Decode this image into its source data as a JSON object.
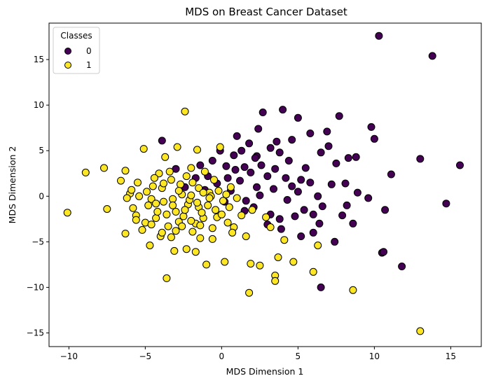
{
  "chart_data": {
    "type": "scatter",
    "title": "MDS on Breast Cancer Dataset",
    "xlabel": "MDS Dimension 1",
    "ylabel": "MDS Dimension 2",
    "xlim": [
      -11.3,
      17.0
    ],
    "ylim": [
      -16.5,
      19.0
    ],
    "xticks": [
      -10,
      -5,
      0,
      5,
      10,
      15
    ],
    "yticks": [
      -15,
      -10,
      -5,
      0,
      5,
      10,
      15
    ],
    "xtick_labels": [
      "−10",
      "−5",
      "0",
      "5",
      "10",
      "15"
    ],
    "ytick_labels": [
      "−15",
      "−10",
      "−5",
      "0",
      "5",
      "10",
      "15"
    ],
    "grid": false,
    "legend": {
      "title": "Classes",
      "placement": "top-left",
      "entries": [
        {
          "label": "0",
          "color": "#440154"
        },
        {
          "label": "1",
          "color": "#fde725"
        }
      ]
    },
    "series": [
      {
        "name": "0",
        "color": "#440154",
        "points": [
          [
            10.3,
            17.6
          ],
          [
            13.8,
            15.4
          ],
          [
            15.6,
            3.4
          ],
          [
            13.0,
            4.1
          ],
          [
            14.7,
            -0.8
          ],
          [
            11.8,
            -7.7
          ],
          [
            10.5,
            -6.2
          ],
          [
            10.6,
            -6.1
          ],
          [
            11.1,
            2.4
          ],
          [
            10.7,
            -1.5
          ],
          [
            10.0,
            6.3
          ],
          [
            9.8,
            7.6
          ],
          [
            7.7,
            8.8
          ],
          [
            8.8,
            4.3
          ],
          [
            8.3,
            4.2
          ],
          [
            8.6,
            -3.0
          ],
          [
            8.9,
            0.4
          ],
          [
            8.2,
            -1.0
          ],
          [
            7.4,
            -5.0
          ],
          [
            7.5,
            3.6
          ],
          [
            7.0,
            5.5
          ],
          [
            7.2,
            1.3
          ],
          [
            6.9,
            7.1
          ],
          [
            6.5,
            4.8
          ],
          [
            6.4,
            -3.0
          ],
          [
            6.5,
            -10.0
          ],
          [
            6.0,
            -2.0
          ],
          [
            5.8,
            1.5
          ],
          [
            5.5,
            3.1
          ],
          [
            5.2,
            -4.4
          ],
          [
            5.0,
            8.6
          ],
          [
            5.0,
            0.5
          ],
          [
            5.2,
            1.8
          ],
          [
            4.8,
            -2.2
          ],
          [
            4.4,
            3.9
          ],
          [
            4.2,
            2.0
          ],
          [
            4.0,
            9.5
          ],
          [
            3.9,
            -3.6
          ],
          [
            3.8,
            -2.5
          ],
          [
            3.6,
            6.0
          ],
          [
            3.5,
            3.0
          ],
          [
            3.4,
            0.8
          ],
          [
            3.2,
            5.3
          ],
          [
            3.2,
            -2.0
          ],
          [
            3.0,
            2.2
          ],
          [
            2.7,
            9.2
          ],
          [
            2.6,
            3.4
          ],
          [
            2.5,
            0.1
          ],
          [
            2.4,
            7.4
          ],
          [
            2.3,
            4.4
          ],
          [
            2.3,
            1.0
          ],
          [
            2.1,
            -1.2
          ],
          [
            1.9,
            2.6
          ],
          [
            1.8,
            5.8
          ],
          [
            1.6,
            -0.5
          ],
          [
            1.5,
            3.2
          ],
          [
            1.3,
            5.0
          ],
          [
            1.2,
            1.7
          ],
          [
            1.0,
            6.6
          ],
          [
            0.9,
            2.9
          ],
          [
            0.8,
            4.5
          ],
          [
            0.6,
            0.6
          ],
          [
            0.4,
            2.0
          ],
          [
            0.3,
            3.3
          ],
          [
            0.2,
            -0.6
          ],
          [
            -0.1,
            5.0
          ],
          [
            -0.3,
            1.4
          ],
          [
            -0.6,
            3.9
          ],
          [
            -0.9,
            2.2
          ],
          [
            -1.1,
            0.7
          ],
          [
            -1.4,
            3.4
          ],
          [
            -1.7,
            2.0
          ],
          [
            -2.4,
            1.0
          ],
          [
            -3.9,
            6.1
          ],
          [
            -3.0,
            3.0
          ],
          [
            3.8,
            4.8
          ],
          [
            4.6,
            6.2
          ],
          [
            5.8,
            6.9
          ],
          [
            6.6,
            -1.1
          ],
          [
            7.9,
            -2.1
          ],
          [
            9.6,
            -0.2
          ],
          [
            8.1,
            1.4
          ],
          [
            6.3,
            0.0
          ],
          [
            5.4,
            -1.5
          ],
          [
            4.3,
            -0.4
          ],
          [
            3.0,
            -3.1
          ],
          [
            2.2,
            4.2
          ],
          [
            1.5,
            -1.6
          ],
          [
            4.6,
            1.1
          ],
          [
            6.0,
            -4.0
          ]
        ]
      },
      {
        "name": "1",
        "color": "#fde725",
        "points": [
          [
            -10.1,
            -1.8
          ],
          [
            -8.9,
            2.6
          ],
          [
            -7.7,
            3.1
          ],
          [
            -7.5,
            -1.4
          ],
          [
            -6.6,
            1.7
          ],
          [
            -6.3,
            2.8
          ],
          [
            -6.3,
            -4.1
          ],
          [
            -6.0,
            0.3
          ],
          [
            -5.8,
            -1.3
          ],
          [
            -5.6,
            -2.1
          ],
          [
            -5.2,
            -3.7
          ],
          [
            -5.1,
            5.2
          ],
          [
            -4.8,
            -1.0
          ],
          [
            -4.7,
            -5.4
          ],
          [
            -4.5,
            1.1
          ],
          [
            -4.3,
            -2.4
          ],
          [
            -4.1,
            2.5
          ],
          [
            -4.0,
            -4.4
          ],
          [
            -3.8,
            -0.6
          ],
          [
            -3.7,
            4.3
          ],
          [
            -3.6,
            -9.0
          ],
          [
            -3.5,
            -3.3
          ],
          [
            -3.3,
            1.8
          ],
          [
            -3.1,
            -6.0
          ],
          [
            -3.0,
            -1.7
          ],
          [
            -2.9,
            5.4
          ],
          [
            -2.8,
            -2.8
          ],
          [
            -2.6,
            0.2
          ],
          [
            -2.4,
            9.3
          ],
          [
            -2.3,
            -5.8
          ],
          [
            -2.2,
            -0.9
          ],
          [
            -2.0,
            3.1
          ],
          [
            -1.9,
            -3.9
          ],
          [
            -1.7,
            -6.1
          ],
          [
            -1.6,
            5.1
          ],
          [
            -1.5,
            -1.2
          ],
          [
            -1.4,
            -4.6
          ],
          [
            -1.2,
            -2.4
          ],
          [
            -1.0,
            -7.5
          ],
          [
            -0.8,
            0.4
          ],
          [
            -0.6,
            -3.5
          ],
          [
            -0.5,
            1.8
          ],
          [
            -0.3,
            -2.3
          ],
          [
            -0.1,
            5.4
          ],
          [
            0.1,
            -0.5
          ],
          [
            0.2,
            -7.2
          ],
          [
            0.4,
            -2.9
          ],
          [
            0.6,
            1.0
          ],
          [
            0.8,
            -3.4
          ],
          [
            1.0,
            -0.2
          ],
          [
            1.3,
            -2.1
          ],
          [
            1.6,
            -4.4
          ],
          [
            1.8,
            -10.6
          ],
          [
            1.9,
            -7.4
          ],
          [
            2.0,
            -1.5
          ],
          [
            2.5,
            -7.6
          ],
          [
            2.9,
            -2.3
          ],
          [
            3.2,
            -3.4
          ],
          [
            3.5,
            -8.7
          ],
          [
            3.5,
            -9.3
          ],
          [
            3.7,
            -6.7
          ],
          [
            4.1,
            -4.8
          ],
          [
            4.7,
            -7.2
          ],
          [
            6.0,
            -8.3
          ],
          [
            6.3,
            -5.4
          ],
          [
            8.6,
            -10.3
          ],
          [
            13.0,
            -14.8
          ],
          [
            -5.9,
            0.7
          ],
          [
            -5.4,
            0.0
          ],
          [
            -5.0,
            -2.9
          ],
          [
            -4.6,
            -0.3
          ],
          [
            -4.4,
            2.0
          ],
          [
            -4.2,
            -1.7
          ],
          [
            -3.9,
            0.9
          ],
          [
            -3.6,
            -2.0
          ],
          [
            -3.4,
            2.7
          ],
          [
            -3.2,
            -0.3
          ],
          [
            -3.0,
            -3.8
          ],
          [
            -2.7,
            1.3
          ],
          [
            -2.5,
            -2.2
          ],
          [
            -2.3,
            2.2
          ],
          [
            -2.1,
            -0.4
          ],
          [
            -1.9,
            1.5
          ],
          [
            -1.7,
            -3.0
          ],
          [
            -1.5,
            0.9
          ],
          [
            -1.3,
            -1.8
          ],
          [
            -1.1,
            2.7
          ],
          [
            -0.9,
            -1.0
          ],
          [
            -0.7,
            0.0
          ],
          [
            -0.4,
            -1.5
          ],
          [
            -0.2,
            0.6
          ],
          [
            0.0,
            -2.0
          ],
          [
            0.3,
            0.2
          ],
          [
            0.5,
            -1.2
          ],
          [
            -5.5,
            1.5
          ],
          [
            -4.9,
            0.5
          ],
          [
            -4.3,
            -0.8
          ],
          [
            -3.8,
            1.4
          ],
          [
            -3.2,
            -1.0
          ],
          [
            -2.8,
            0.6
          ],
          [
            -2.4,
            -1.5
          ],
          [
            -2.0,
            0.1
          ],
          [
            -1.6,
            -0.7
          ],
          [
            -1.2,
            0.4
          ],
          [
            -0.8,
            -0.2
          ],
          [
            -6.2,
            -0.2
          ],
          [
            -5.6,
            -2.6
          ],
          [
            -4.6,
            -3.1
          ],
          [
            -3.9,
            -4.0
          ],
          [
            -3.3,
            -4.5
          ],
          [
            -2.6,
            -3.3
          ],
          [
            -2.0,
            -2.7
          ],
          [
            -1.4,
            -3.2
          ],
          [
            -0.6,
            -4.7
          ],
          [
            0.7,
            -4.0
          ]
        ]
      }
    ]
  }
}
